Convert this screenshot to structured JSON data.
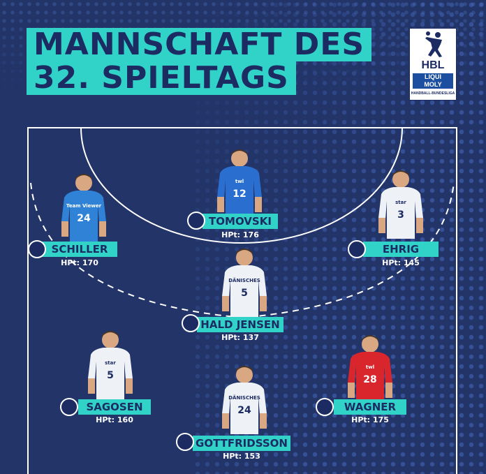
{
  "header": {
    "title_line1": "MANNSCHAFT DES",
    "title_line2": "32. SPIELTAGS"
  },
  "logo": {
    "abbr": "HBL",
    "sponsor_line1": "LIQUI",
    "sponsor_line2": "MOLY",
    "league_name": "HANDBALL-BUNDESLIGA"
  },
  "colors": {
    "background": "#223468",
    "accent": "#31d3c8",
    "text_dark": "#1c2c63"
  },
  "players": [
    {
      "id": "tomovski",
      "name": "TOMOVSKI",
      "points": "HPt: 176",
      "jersey": "12",
      "shirt_sponsor": "twl",
      "shirt_color": "#2a6fd0",
      "club_icon": "mt-melsungen-icon"
    },
    {
      "id": "schiller",
      "name": "SCHILLER",
      "points": "HPt: 170",
      "jersey": "24",
      "shirt_sponsor": "Team Viewer",
      "shirt_color": "#2f82d6",
      "club_icon": "frisch-auf-goeppingen-icon"
    },
    {
      "id": "ehrig",
      "name": "EHRIG",
      "points": "HPt: 145",
      "jersey": "3",
      "shirt_sponsor": "star",
      "shirt_color": "#eef1f6",
      "club_icon": "thw-kiel-icon"
    },
    {
      "id": "hald-jensen",
      "name": "HALD JENSEN",
      "points": "HPt: 137",
      "jersey": "5",
      "shirt_sponsor": "DÄNISCHES BETTENLAGER",
      "shirt_color": "#eef1f6",
      "club_icon": "sg-flensburg-handewitt-icon"
    },
    {
      "id": "sagosen",
      "name": "SAGOSEN",
      "points": "HPt: 160",
      "jersey": "5",
      "shirt_sponsor": "star",
      "shirt_color": "#eef1f6",
      "club_icon": "thw-kiel-icon"
    },
    {
      "id": "wagner",
      "name": "WAGNER",
      "points": "HPt: 175",
      "jersey": "28",
      "shirt_sponsor": "twl",
      "shirt_color": "#d9262c",
      "club_icon": "mt-melsungen-icon"
    },
    {
      "id": "gottfridsson",
      "name": "GOTTFRIDSSON",
      "points": "HPt: 153",
      "jersey": "24",
      "shirt_sponsor": "DÄNISCHES BETTENLAGER",
      "shirt_color": "#eef1f6",
      "club_icon": "sg-flensburg-handewitt-icon"
    }
  ]
}
